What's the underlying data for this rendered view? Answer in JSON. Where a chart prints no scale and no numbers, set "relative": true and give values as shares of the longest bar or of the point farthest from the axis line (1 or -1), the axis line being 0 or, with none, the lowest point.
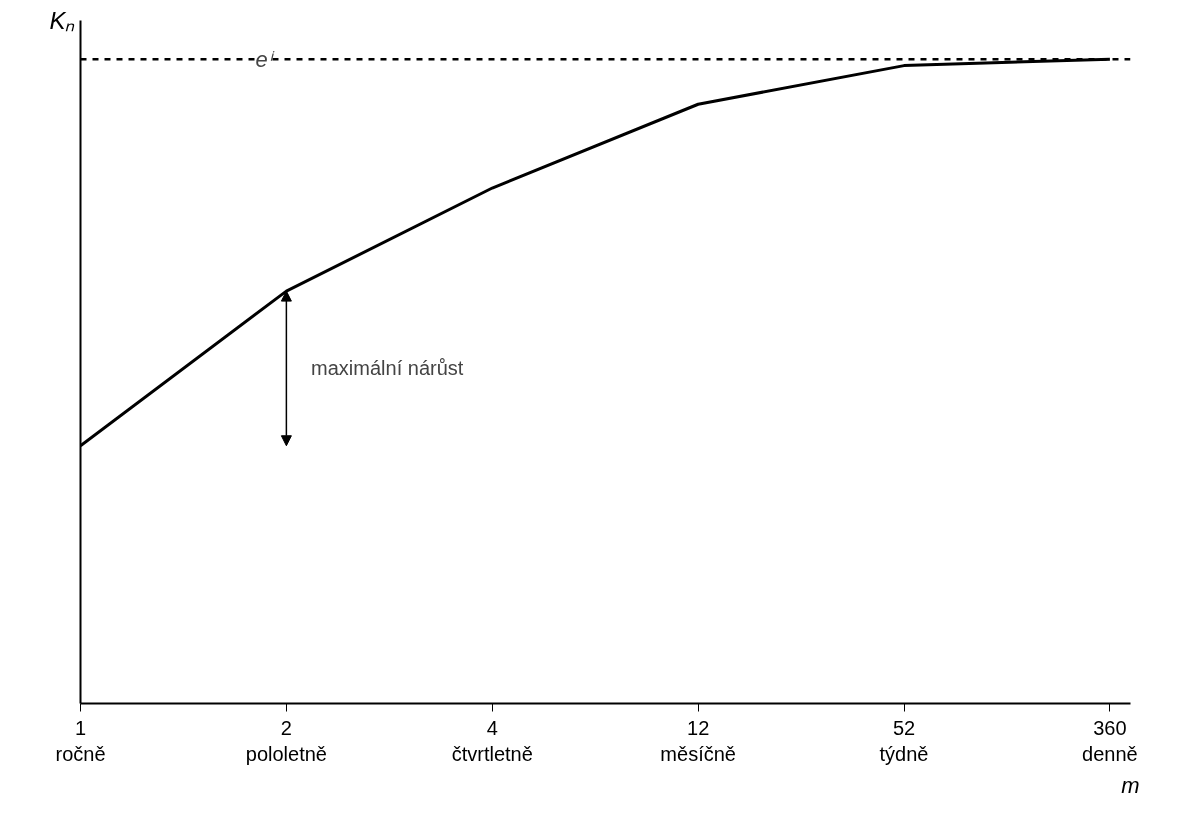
{
  "chart_data": {
    "type": "line",
    "relative": true,
    "categories": [
      "1\nročně",
      "2\npololetně",
      "4\nčtvrtletně",
      "12\nměsíčně",
      "52\ntýdně",
      "360\ndenně"
    ],
    "series": [
      {
        "color": "#000000",
        "values": [
          0.4,
          0.64,
          0.8,
          0.93,
          0.99,
          1.0
        ]
      }
    ],
    "xlabel": "m",
    "ylabel": "Kₙ",
    "ref_lines": [
      {
        "axis": "y",
        "value": 1.0,
        "label": "eⁱ",
        "line_style": "dashed",
        "color": "#000000"
      }
    ],
    "annotations": [
      "maximální nárůst"
    ],
    "grid": false,
    "marker": "none",
    "line_style": "solid"
  }
}
